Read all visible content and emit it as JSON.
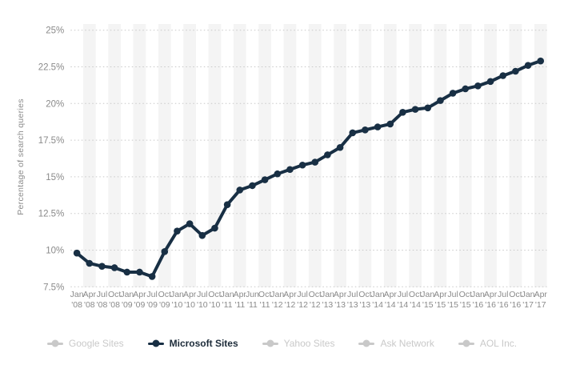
{
  "chart_data": {
    "type": "line",
    "title": "",
    "ylabel": "Percentage of search queries",
    "ylim": [
      7.5,
      25
    ],
    "ytick_values": [
      25,
      22.5,
      20,
      17.5,
      15,
      12.5,
      10,
      7.5
    ],
    "ytick_suffix": "%",
    "grid": "dotted-horizontal",
    "legend_position": "bottom",
    "x_tick_labels": [
      {
        "month": "Jan",
        "year": "'08"
      },
      {
        "month": "Apr",
        "year": "'08"
      },
      {
        "month": "Jul",
        "year": "'08"
      },
      {
        "month": "Oct",
        "year": "'08"
      },
      {
        "month": "Jan",
        "year": "'09"
      },
      {
        "month": "Apr",
        "year": "'09"
      },
      {
        "month": "Jul",
        "year": "'09"
      },
      {
        "month": "Oct",
        "year": "'09"
      },
      {
        "month": "Jan",
        "year": "'10"
      },
      {
        "month": "Apr",
        "year": "'10"
      },
      {
        "month": "Jul",
        "year": "'10"
      },
      {
        "month": "Oct",
        "year": "'10"
      },
      {
        "month": "Jan",
        "year": "'11"
      },
      {
        "month": "Apr",
        "year": "'11"
      },
      {
        "month": "Jun",
        "year": "'11"
      },
      {
        "month": "Oct",
        "year": "'11"
      },
      {
        "month": "Jan",
        "year": "'12"
      },
      {
        "month": "Apr",
        "year": "'12"
      },
      {
        "month": "Jul",
        "year": "'12"
      },
      {
        "month": "Oct",
        "year": "'12"
      },
      {
        "month": "Jan",
        "year": "'13"
      },
      {
        "month": "Apr",
        "year": "'13"
      },
      {
        "month": "Jul",
        "year": "'13"
      },
      {
        "month": "Oct",
        "year": "'13"
      },
      {
        "month": "Jan",
        "year": "'14"
      },
      {
        "month": "Apr",
        "year": "'14"
      },
      {
        "month": "Jul",
        "year": "'14"
      },
      {
        "month": "Oct",
        "year": "'14"
      },
      {
        "month": "Jan",
        "year": "'15"
      },
      {
        "month": "Apr",
        "year": "'15"
      },
      {
        "month": "Jul",
        "year": "'15"
      },
      {
        "month": "Oct",
        "year": "'15"
      },
      {
        "month": "Jan",
        "year": "'16"
      },
      {
        "month": "Apr",
        "year": "'16"
      },
      {
        "month": "Jul",
        "year": "'16"
      },
      {
        "month": "Oct",
        "year": "'16"
      },
      {
        "month": "Jan",
        "year": "'17"
      },
      {
        "month": "Apr",
        "year": "'17"
      }
    ],
    "series": [
      {
        "name": "Google Sites",
        "active": false,
        "values": []
      },
      {
        "name": "Microsoft Sites",
        "active": true,
        "values": [
          9.8,
          9.1,
          8.9,
          8.8,
          8.5,
          8.5,
          8.2,
          9.9,
          11.3,
          11.8,
          11.0,
          11.5,
          13.1,
          14.1,
          14.4,
          14.8,
          15.2,
          15.5,
          15.8,
          16.0,
          16.5,
          17.0,
          18.0,
          18.2,
          18.4,
          18.6,
          19.4,
          19.6,
          19.7,
          20.2,
          20.7,
          21.0,
          21.2,
          21.5,
          21.9,
          22.2,
          22.6,
          22.9
        ]
      },
      {
        "name": "Yahoo Sites",
        "active": false,
        "values": []
      },
      {
        "name": "Ask Network",
        "active": false,
        "values": []
      },
      {
        "name": "AOL Inc.",
        "active": false,
        "values": []
      }
    ],
    "colors": {
      "active_series": "#182f44",
      "active_legend_text": "#1c2b39",
      "inactive_legend": "#c9c9c9",
      "grid": "#c8c8c8",
      "axis_text": "#8a8a8a",
      "band": "#f4f4f4",
      "background": "#ffffff"
    }
  }
}
